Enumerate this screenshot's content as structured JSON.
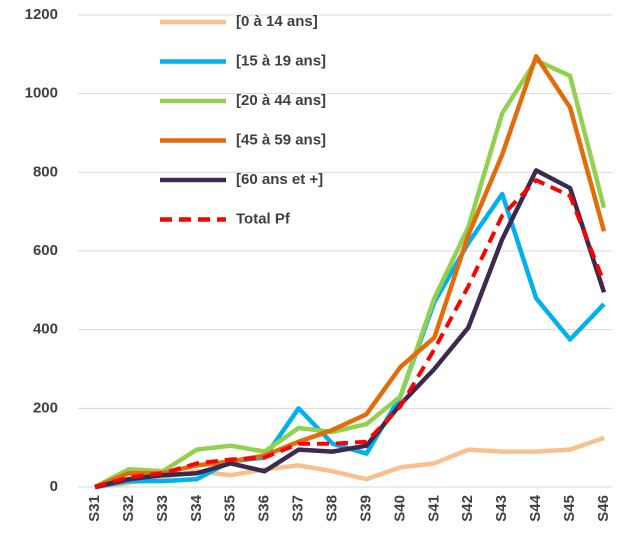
{
  "chart_data": {
    "type": "line",
    "categories": [
      "S31",
      "S32",
      "S33",
      "S34",
      "S35",
      "S36",
      "S37",
      "S38",
      "S39",
      "S40",
      "S41",
      "S42",
      "S43",
      "S44",
      "S45",
      "S46"
    ],
    "series": [
      {
        "name": "[0 à 14 ans]",
        "color": "#f9c08f",
        "style": "solid",
        "values": [
          0,
          10,
          25,
          40,
          30,
          45,
          55,
          40,
          20,
          50,
          60,
          95,
          90,
          90,
          95,
          125
        ]
      },
      {
        "name": "[15 à 19 ans]",
        "color": "#00b0f0",
        "style": "solid",
        "values": [
          0,
          15,
          15,
          20,
          65,
          75,
          200,
          110,
          85,
          230,
          470,
          620,
          745,
          480,
          375,
          465
        ]
      },
      {
        "name": "[20 à 44 ans]",
        "color": "#92d050",
        "style": "solid",
        "values": [
          0,
          45,
          40,
          95,
          105,
          90,
          150,
          140,
          160,
          230,
          480,
          660,
          950,
          1085,
          1045,
          710
        ]
      },
      {
        "name": "[45 à 59 ans]",
        "color": "#e36c0a",
        "style": "solid",
        "values": [
          0,
          35,
          35,
          55,
          65,
          80,
          115,
          145,
          185,
          305,
          380,
          640,
          845,
          1095,
          965,
          650
        ]
      },
      {
        "name": "[60 ans et +]",
        "color": "#3b2a4e",
        "style": "solid",
        "values": [
          0,
          20,
          30,
          35,
          60,
          40,
          95,
          90,
          105,
          210,
          300,
          405,
          630,
          805,
          760,
          495
        ]
      },
      {
        "name": "Total Pf",
        "color": "#ff0000",
        "style": "dashed",
        "values": [
          0,
          25,
          35,
          60,
          70,
          75,
          110,
          110,
          115,
          205,
          350,
          510,
          690,
          780,
          740,
          520
        ]
      }
    ],
    "ylim": [
      0,
      1200
    ],
    "yticks": [
      0,
      200,
      400,
      600,
      800,
      1000,
      1200
    ],
    "grid": true,
    "legend": "top"
  }
}
